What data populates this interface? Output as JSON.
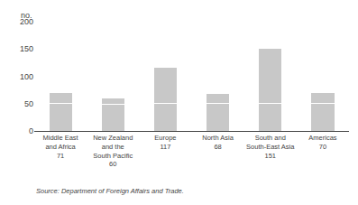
{
  "chart_data": {
    "type": "bar",
    "stacked": true,
    "categories": [
      "Middle East\nand Africa\n71",
      "New Zealand\nand the\nSouth Pacific\n60",
      "Europe\n117",
      "North Asia\n68",
      "South and\nSouth-East Asia\n151",
      "Americas\n70"
    ],
    "series": [
      {
        "color": "#c8c8c8",
        "values": [
          50,
          48,
          50,
          50,
          50,
          50
        ]
      },
      {
        "color": "#c8c8c8",
        "values": [
          21,
          12,
          67,
          18,
          101,
          20
        ]
      }
    ],
    "ylabel": "no.",
    "ylim": [
      0,
      200
    ],
    "yticks": [
      0,
      50,
      100,
      150,
      200
    ],
    "grid": false,
    "annotations": [
      "Source: Department of Foreign Affairs and Trade."
    ]
  }
}
